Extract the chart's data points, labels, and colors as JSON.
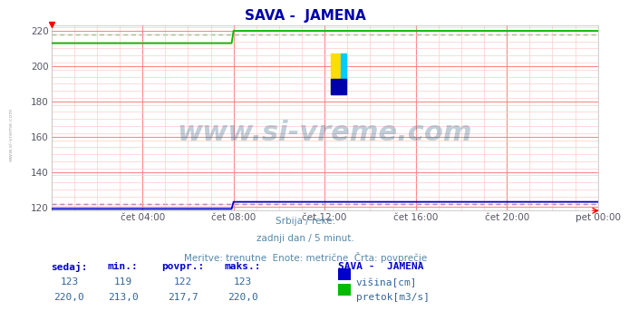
{
  "title": "SAVA -  JAMENA",
  "subtitle_lines": [
    "Srbija / reke.",
    "zadnji dan / 5 minut.",
    "Meritve: trenutne  Enote: metrične  Črta: povprečje"
  ],
  "xlabel_ticks": [
    "čet 04:00",
    "čet 08:00",
    "čet 12:00",
    "čet 16:00",
    "čet 20:00",
    "pet 00:00"
  ],
  "ylabel_ticks": [
    120,
    140,
    160,
    180,
    200,
    220
  ],
  "ylim": [
    118,
    223
  ],
  "xlim": [
    0,
    288
  ],
  "tick_positions_x": [
    48,
    96,
    144,
    192,
    240,
    288
  ],
  "bg_color": "#ffffff",
  "plot_bg_color": "#ffffff",
  "grid_color_major": "#ff8888",
  "grid_color_minor": "#ffcccc",
  "pretok_color": "#00bb00",
  "visina_color": "#0000cc",
  "pretok_avg_color": "#009900",
  "visina_avg_color": "#000099",
  "watermark_text": "www.si-vreme.com",
  "watermark_color": "#1a5276",
  "watermark_alpha": 0.28,
  "watermark_fontsize": 22,
  "legend_title": "SAVA -  JAMENA",
  "legend_items": [
    "višina[cm]",
    "pretok[m3/s]"
  ],
  "legend_colors": [
    "#0000cc",
    "#00bb00"
  ],
  "stats_headers": [
    "sedaj:",
    "min.:",
    "povpr.:",
    "maks.:"
  ],
  "stats_visina": [
    "123",
    "119",
    "122",
    "123"
  ],
  "stats_pretok": [
    "220,0",
    "213,0",
    "217,7",
    "220,0"
  ],
  "pretok_seg1_val": 213,
  "pretok_seg2_val": 220,
  "visina_seg1_val": 119,
  "visina_seg2_val": 123,
  "step_x": 96,
  "avg_visina": 122,
  "avg_pretok": 217.7,
  "title_color": "#0000aa",
  "tick_label_color": "#555566",
  "subtitle_color": "#5588aa",
  "stats_header_color": "#0000cc",
  "stats_value_color": "#336699",
  "left_text": "www.si-vreme.com",
  "left_text_color": "#aaaaaa",
  "logo_yellow": "#ffdd00",
  "logo_cyan": "#00ccff",
  "logo_blue": "#0000aa"
}
